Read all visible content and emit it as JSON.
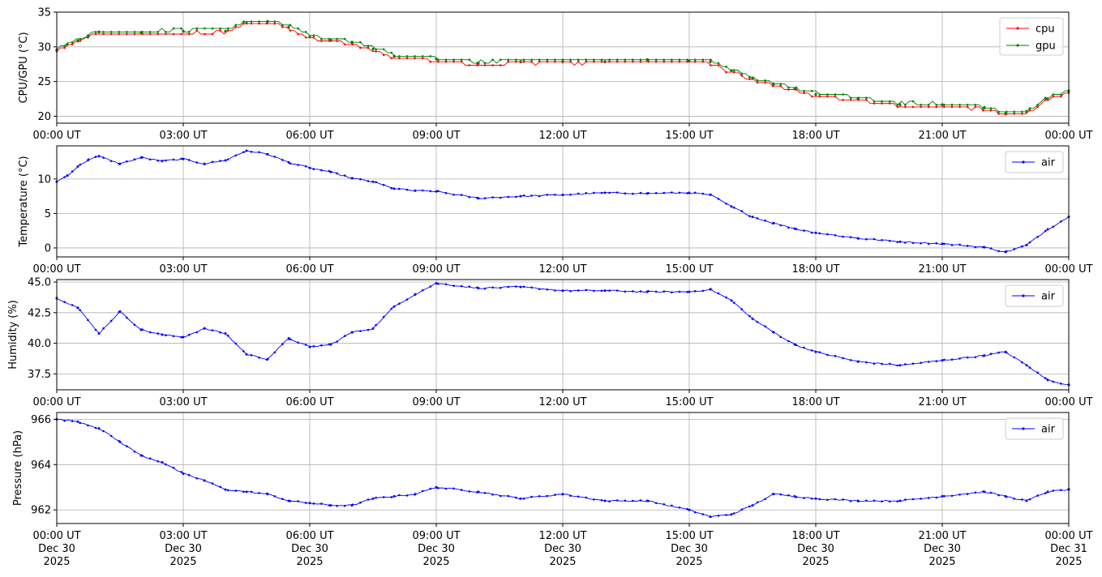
{
  "chart_data": [
    {
      "type": "line",
      "ylabel": "CPU/GPU (°C)",
      "ylim": [
        19,
        35
      ],
      "yticks": [
        20,
        25,
        30,
        35
      ],
      "grid": true,
      "legend": "top-right",
      "x_ticks": [
        "00:00 UT",
        "03:00 UT",
        "06:00 UT",
        "09:00 UT",
        "12:00 UT",
        "15:00 UT",
        "18:00 UT",
        "21:00 UT",
        "00:00 UT"
      ],
      "x_hours": [
        0,
        0.25,
        0.5,
        0.75,
        1,
        2,
        3,
        4,
        4.5,
        5,
        5.5,
        6,
        6.5,
        7,
        7.5,
        8,
        9,
        10,
        11,
        12,
        13,
        14,
        15,
        15.5,
        16,
        16.5,
        17,
        17.5,
        18,
        19,
        20,
        21,
        22,
        22.5,
        23,
        23.5,
        24
      ],
      "series": [
        {
          "name": "cpu",
          "color": "#ff0000",
          "values": [
            29.5,
            30.3,
            30.8,
            31.5,
            32.1,
            32.0,
            32.2,
            32.2,
            33.4,
            33.6,
            32.8,
            31.4,
            30.9,
            30.6,
            29.6,
            28.6,
            28.2,
            27.6,
            27.8,
            27.8,
            27.8,
            28.1,
            27.9,
            27.8,
            26.5,
            25.4,
            24.6,
            23.9,
            23.1,
            22.5,
            21.6,
            21.6,
            21.2,
            20.3,
            20.6,
            22.4,
            23.6
          ]
        },
        {
          "name": "gpu",
          "color": "#008000",
          "values": [
            29.6,
            30.4,
            30.9,
            31.6,
            32.2,
            32.1,
            32.3,
            32.3,
            33.5,
            33.7,
            32.9,
            31.5,
            31.0,
            30.7,
            29.7,
            28.7,
            28.3,
            27.7,
            27.9,
            27.9,
            27.9,
            28.2,
            28.0,
            27.9,
            26.6,
            25.5,
            24.7,
            24.0,
            23.2,
            22.6,
            21.7,
            21.7,
            21.3,
            20.4,
            20.7,
            22.5,
            23.7
          ]
        }
      ]
    },
    {
      "type": "line",
      "ylabel": "Temperature (°C)",
      "ylim": [
        -1.3,
        14.8
      ],
      "yticks": [
        0,
        5,
        10
      ],
      "grid": true,
      "legend": "top-right",
      "x_ticks": [
        "00:00 UT",
        "03:00 UT",
        "06:00 UT",
        "09:00 UT",
        "12:00 UT",
        "15:00 UT",
        "18:00 UT",
        "21:00 UT",
        "00:00 UT"
      ],
      "x_hours": [
        0,
        0.25,
        0.5,
        0.75,
        1,
        1.5,
        2,
        2.5,
        3,
        3.5,
        4,
        4.5,
        5,
        5.5,
        6,
        6.5,
        7,
        7.5,
        8,
        8.5,
        9,
        10,
        11,
        12,
        13,
        14,
        15,
        15.5,
        16,
        16.5,
        17,
        17.5,
        18,
        19,
        20,
        21,
        22,
        22.5,
        23,
        23.5,
        24
      ],
      "series": [
        {
          "name": "air",
          "color": "#0000ff",
          "values": [
            9.6,
            10.5,
            11.8,
            12.8,
            13.3,
            12.2,
            13.1,
            12.6,
            12.9,
            12.2,
            12.7,
            14.1,
            13.6,
            12.4,
            11.6,
            11.0,
            10.1,
            9.6,
            8.6,
            8.3,
            8.2,
            7.2,
            7.5,
            7.7,
            8.0,
            7.9,
            8.0,
            7.7,
            6.0,
            4.5,
            3.6,
            2.8,
            2.2,
            1.4,
            0.9,
            0.6,
            0.1,
            -0.6,
            0.4,
            2.7,
            4.5
          ]
        }
      ]
    },
    {
      "type": "scatter",
      "ylabel": "Humidity (%)",
      "ylim": [
        36.2,
        45.2
      ],
      "yticks": [
        37.5,
        40.0,
        42.5,
        45.0
      ],
      "grid": true,
      "legend": "top-right",
      "x_ticks": [
        "00:00 UT",
        "03:00 UT",
        "06:00 UT",
        "09:00 UT",
        "12:00 UT",
        "15:00 UT",
        "18:00 UT",
        "21:00 UT",
        "00:00 UT"
      ],
      "x_hours": [
        0,
        0.5,
        1,
        1.5,
        2,
        2.5,
        3,
        3.5,
        4,
        4.5,
        5,
        5.5,
        6,
        6.5,
        7,
        7.5,
        8,
        8.5,
        9,
        10,
        11,
        12,
        13,
        14,
        15,
        15.5,
        16,
        16.5,
        17,
        17.5,
        18,
        19,
        20,
        21,
        22,
        22.5,
        23,
        23.5,
        24
      ],
      "series": [
        {
          "name": "air",
          "color": "#0000ff",
          "values": [
            43.7,
            42.9,
            40.8,
            42.6,
            41.1,
            40.7,
            40.5,
            41.2,
            40.8,
            39.1,
            38.7,
            40.4,
            39.7,
            39.9,
            40.9,
            41.2,
            43.0,
            44.0,
            44.9,
            44.5,
            44.6,
            44.3,
            44.3,
            44.2,
            44.2,
            44.4,
            43.5,
            42.0,
            40.9,
            39.9,
            39.3,
            38.5,
            38.2,
            38.6,
            39.0,
            39.3,
            38.2,
            37.0,
            36.6
          ]
        }
      ]
    },
    {
      "type": "scatter",
      "ylabel": "Pressure (hPa)",
      "ylim": [
        961.4,
        966.3
      ],
      "yticks": [
        962,
        964,
        966
      ],
      "grid": true,
      "legend": "top-right",
      "x_ticks": [
        "00:00 UT\nDec 30\n2025",
        "03:00 UT\nDec 30\n2025",
        "06:00 UT\nDec 30\n2025",
        "09:00 UT\nDec 30\n2025",
        "12:00 UT\nDec 30\n2025",
        "15:00 UT\nDec 30\n2025",
        "18:00 UT\nDec 30\n2025",
        "21:00 UT\nDec 30\n2025",
        "00:00 UT\nDec 31\n2025"
      ],
      "x_hours": [
        0,
        0.5,
        1,
        1.5,
        2,
        2.5,
        3,
        3.5,
        4,
        4.5,
        5,
        5.5,
        6,
        6.5,
        7,
        7.5,
        8,
        8.5,
        9,
        10,
        11,
        12,
        13,
        14,
        15,
        15.5,
        16,
        16.5,
        17,
        17.5,
        18,
        19,
        20,
        21,
        22,
        22.5,
        23,
        23.5,
        24
      ],
      "series": [
        {
          "name": "air",
          "color": "#0000ff",
          "values": [
            966.0,
            965.9,
            965.6,
            965.0,
            964.4,
            964.1,
            963.6,
            963.3,
            962.9,
            962.8,
            962.7,
            962.4,
            962.3,
            962.2,
            962.2,
            962.5,
            962.6,
            962.7,
            963.0,
            962.8,
            962.5,
            962.7,
            962.4,
            962.4,
            962.0,
            961.7,
            961.8,
            962.2,
            962.7,
            962.6,
            962.5,
            962.4,
            962.4,
            962.6,
            962.8,
            962.6,
            962.4,
            962.8,
            962.9
          ]
        }
      ]
    }
  ]
}
